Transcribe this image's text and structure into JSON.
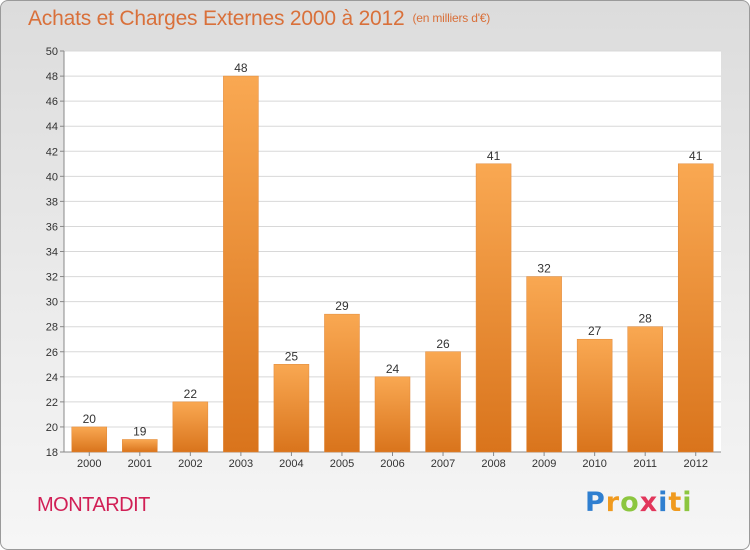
{
  "header": {
    "title": "Achats et Charges Externes 2000 à 2012",
    "unit": "(en milliers d'€)"
  },
  "commune": "MONTARDIT",
  "brand": {
    "letters": [
      {
        "ch": "P",
        "color": "#2f7fd0"
      },
      {
        "ch": "r",
        "color": "#f09a1e"
      },
      {
        "ch": "o",
        "color": "#8cc63f"
      },
      {
        "ch": "x",
        "color": "#e2365b"
      },
      {
        "ch": "i",
        "color": "#2f7fd0"
      },
      {
        "ch": "t",
        "color": "#f09a1e"
      },
      {
        "ch": "i",
        "color": "#8cc63f"
      }
    ]
  },
  "colors": {
    "bar_light": "#f9a852",
    "bar_dark": "#d9741c",
    "title": "#d9703a",
    "commune": "#d11f55"
  },
  "chart_data": {
    "type": "bar",
    "title": "Achats et Charges Externes 2000 à 2012",
    "categories": [
      "2000",
      "2001",
      "2002",
      "2003",
      "2004",
      "2005",
      "2006",
      "2007",
      "2008",
      "2009",
      "2010",
      "2011",
      "2012"
    ],
    "values": [
      20,
      19,
      22,
      48,
      25,
      29,
      24,
      26,
      41,
      32,
      27,
      28,
      41
    ],
    "ylim": [
      18,
      50
    ],
    "yticks": [
      18,
      20,
      22,
      24,
      26,
      28,
      30,
      32,
      34,
      36,
      38,
      40,
      42,
      44,
      46,
      48,
      50
    ],
    "grid": true,
    "legend": "none"
  }
}
